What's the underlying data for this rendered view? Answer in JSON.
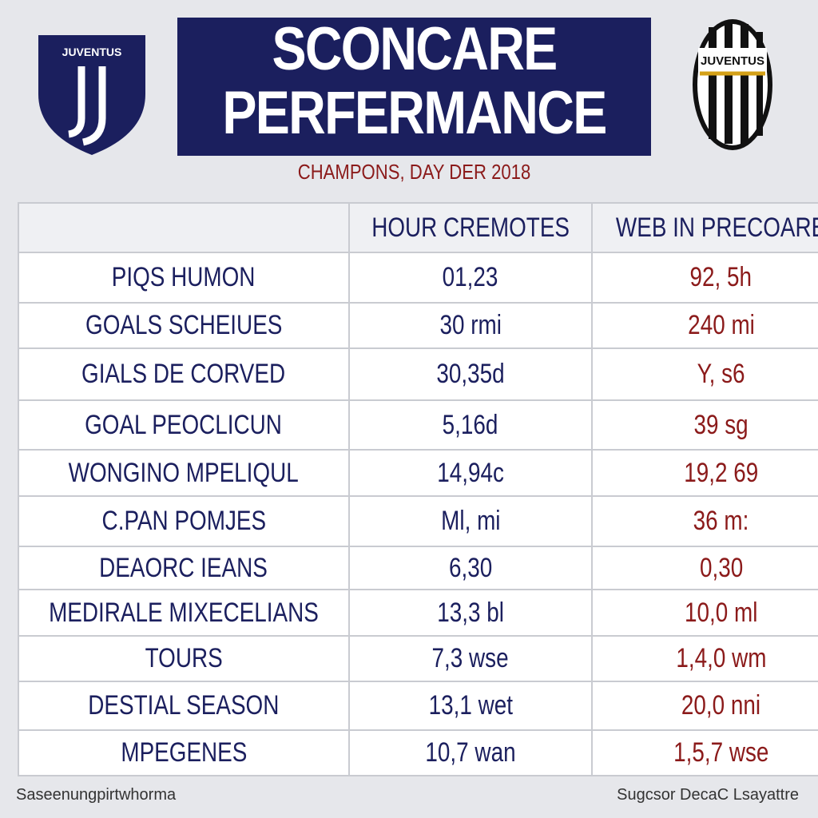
{
  "header": {
    "left_logo": "JUVENTUS",
    "right_logo": "JUVENTUS",
    "title": [
      "SCONCARE",
      "PERFERMANCE"
    ],
    "subtitle": "CHAMPONS, DAY DER 2018"
  },
  "table": {
    "columns": [
      "HOUR CREMOTES",
      "WEB IN PRECOARE"
    ],
    "rows": [
      [
        "PIQS HUMON",
        "01,23",
        "92, 5h"
      ],
      [
        "GOALS SCHEIUES",
        "30 rmi",
        "240 mi"
      ],
      [
        "GIALS DE CORVED",
        "30,35d",
        "Y, s6"
      ],
      [
        "GOAL PEOCLICUN",
        "5,16d",
        "39 sg"
      ],
      [
        "WONGINO MPELIQUL",
        "14,94c",
        "19,2 69"
      ],
      [
        "C.PAN POMJES",
        "Ml, mi",
        "36 m:"
      ],
      [
        "DEAORC IEANS",
        "6,30",
        "0,30"
      ],
      [
        "MEDIRALE MIXECELIANS",
        "13,3 bl",
        "10,0 ml"
      ],
      [
        "TOURS",
        "7,3 wse",
        "1,4,0 wm"
      ],
      [
        "DESTIAL SEASON",
        "13,1 wet",
        "20,0 nni"
      ],
      [
        "MPEGENES",
        "10,7 wan",
        "1,5,7 wse"
      ]
    ]
  },
  "footer": {
    "left": "Saseenungpirtwhorma",
    "right": "Sugcsor DecaC Lsayattre"
  }
}
